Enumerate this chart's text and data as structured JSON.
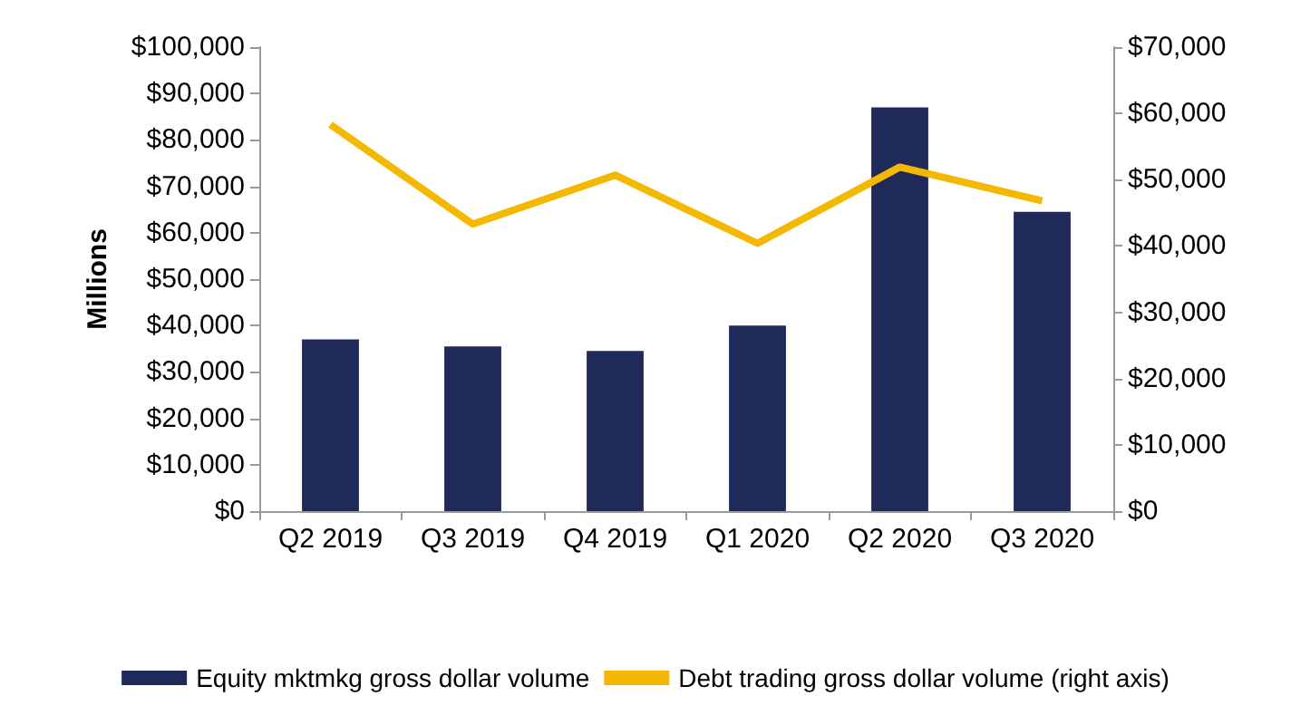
{
  "chart_data": {
    "type": "bar",
    "ylabel": "Millions",
    "categories": [
      "Q2 2019",
      "Q3 2019",
      "Q4 2019",
      "Q1 2020",
      "Q2 2020",
      "Q3 2020"
    ],
    "series": [
      {
        "name": "Equity mktmkg gross dollar volume",
        "color": "#1f2a5a",
        "values": [
          37000,
          35500,
          34500,
          40000,
          87000,
          64500
        ]
      },
      {
        "name": "Debt trading gross dollar volume (right axis)",
        "type": "line",
        "axis": "y2",
        "color": "#f5b800",
        "values": [
          58300,
          43300,
          50700,
          40400,
          51900,
          46800
        ]
      }
    ],
    "ylim": [
      0,
      100000
    ],
    "yticks": [
      {
        "value": 0,
        "label": "$0"
      },
      {
        "value": 10000,
        "label": "$10,000"
      },
      {
        "value": 20000,
        "label": "$20,000"
      },
      {
        "value": 30000,
        "label": "$30,000"
      },
      {
        "value": 40000,
        "label": "$40,000"
      },
      {
        "value": 50000,
        "label": "$50,000"
      },
      {
        "value": 60000,
        "label": "$60,000"
      },
      {
        "value": 70000,
        "label": "$70,000"
      },
      {
        "value": 80000,
        "label": "$80,000"
      },
      {
        "value": 90000,
        "label": "$90,000"
      },
      {
        "value": 100000,
        "label": "$100,000"
      }
    ],
    "y2lim": [
      0,
      70000
    ],
    "y2ticks": [
      {
        "value": 0,
        "label": "$0"
      },
      {
        "value": 10000,
        "label": "$10,000"
      },
      {
        "value": 20000,
        "label": "$20,000"
      },
      {
        "value": 30000,
        "label": "$30,000"
      },
      {
        "value": 40000,
        "label": "$40,000"
      },
      {
        "value": 50000,
        "label": "$50,000"
      },
      {
        "value": 60000,
        "label": "$60,000"
      },
      {
        "value": 70000,
        "label": "$70,000"
      }
    ],
    "grid": false,
    "legend": "bottom",
    "marker": "none"
  }
}
